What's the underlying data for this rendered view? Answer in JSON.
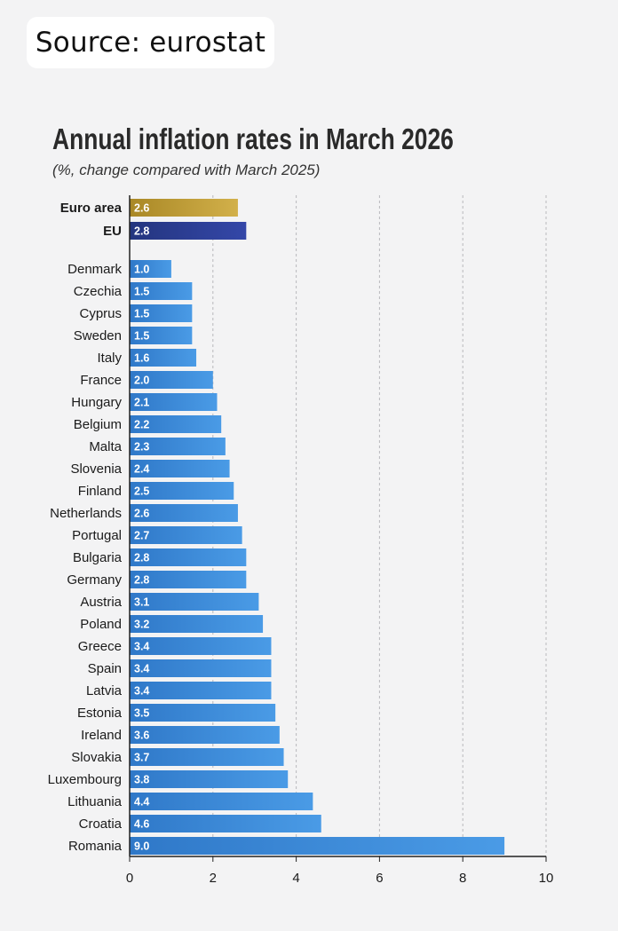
{
  "source": {
    "text": "Source: eurostat"
  },
  "chart_data": {
    "type": "bar",
    "orientation": "horizontal",
    "title": "Annual inflation rates in March 2026",
    "subtitle": "(%, change compared with March 2025)",
    "xlim": [
      0,
      10
    ],
    "xticks": [
      0,
      2,
      4,
      6,
      8,
      10
    ],
    "grid": "vertical dashed",
    "aggregates": [
      {
        "name": "Euro area",
        "value": 2.6,
        "color": "#c6a43a"
      },
      {
        "name": "EU",
        "value": 2.8,
        "color": "#2c3f9a"
      }
    ],
    "categories": [
      "Denmark",
      "Czechia",
      "Cyprus",
      "Sweden",
      "Italy",
      "France",
      "Hungary",
      "Belgium",
      "Malta",
      "Slovenia",
      "Finland",
      "Netherlands",
      "Portugal",
      "Bulgaria",
      "Germany",
      "Austria",
      "Poland",
      "Greece",
      "Spain",
      "Latvia",
      "Estonia",
      "Ireland",
      "Slovakia",
      "Luxembourg",
      "Lithuania",
      "Croatia",
      "Romania"
    ],
    "values": [
      1.0,
      1.5,
      1.5,
      1.5,
      1.6,
      2.0,
      2.1,
      2.2,
      2.3,
      2.4,
      2.5,
      2.6,
      2.7,
      2.8,
      2.8,
      3.1,
      3.2,
      3.4,
      3.4,
      3.4,
      3.5,
      3.6,
      3.7,
      3.8,
      4.4,
      4.6,
      9.0
    ],
    "value_labels": [
      "1.0",
      "1.5",
      "1.5",
      "1.5",
      "1.6",
      "2.0",
      "2.1",
      "2.2",
      "2.3",
      "2.4",
      "2.5",
      "2.6",
      "2.7",
      "2.8",
      "2.8",
      "3.1",
      "3.2",
      "3.4",
      "3.4",
      "3.4",
      "3.5",
      "3.6",
      "3.7",
      "3.8",
      "4.4",
      "4.6",
      "9.0"
    ],
    "aggregate_value_labels": [
      "2.6",
      "2.8"
    ],
    "bar_color": "#3a8bd6"
  }
}
